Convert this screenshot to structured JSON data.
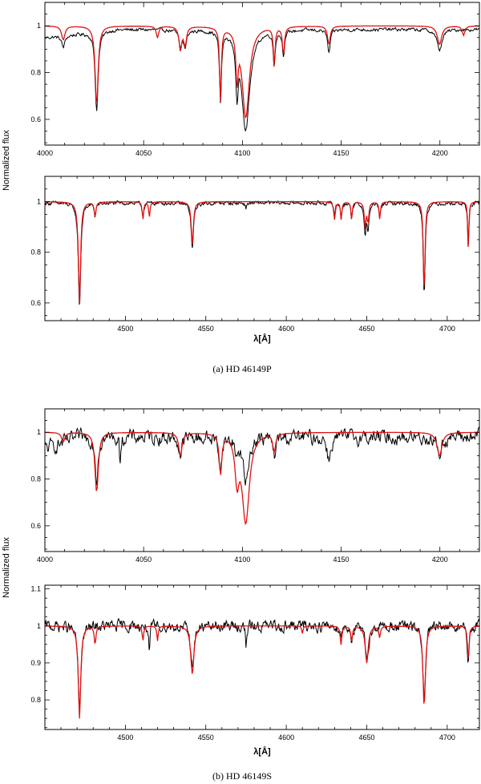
{
  "figure": {
    "ylabel": "Normalized flux",
    "xlabel": "λ[Å]",
    "captions": [
      "(a) HD 46149P",
      "(b) HD 46149S"
    ]
  },
  "colors": {
    "observed": "#000000",
    "model": "#e01010"
  },
  "chart_data": [
    {
      "type": "line",
      "id": "a-top",
      "xlim": [
        4000,
        4220
      ],
      "ylim": [
        0.49,
        1.1
      ],
      "xticks": [
        4000,
        4050,
        4100,
        4150,
        4200
      ],
      "yticks": [
        0.6,
        0.8,
        1
      ],
      "series": [
        {
          "role": "observed",
          "noise": 0.006,
          "cont": 0.985,
          "slope": [
            0.95,
            0.005
          ],
          "lines": [
            [
              4026.2,
              0.34,
              0.9
            ],
            [
              4068.6,
              0.07,
              0.9
            ],
            [
              4071,
              0.07,
              0.9
            ],
            [
              4088.9,
              0.3,
              0.6
            ],
            [
              4097.3,
              0.22,
              0.7
            ],
            [
              4101.7,
              0.42,
              2.5
            ],
            [
              4116.1,
              0.14,
              0.6
            ],
            [
              4120.8,
              0.1,
              0.7
            ],
            [
              4143.8,
              0.1,
              0.8
            ],
            [
              4199.8,
              0.09,
              1.5
            ],
            [
              4009.3,
              0.05,
              1.0
            ]
          ]
        },
        {
          "role": "model",
          "noise": 0,
          "cont": 1.0,
          "lines": [
            [
              4026.2,
              0.34,
              0.9
            ],
            [
              4009.3,
              0.06,
              1.0
            ],
            [
              4057,
              0.05,
              0.7
            ],
            [
              4068.6,
              0.1,
              0.8
            ],
            [
              4071,
              0.08,
              0.8
            ],
            [
              4088.9,
              0.32,
              0.5
            ],
            [
              4097.3,
              0.2,
              0.6
            ],
            [
              4101.7,
              0.39,
              2.2
            ],
            [
              4116.1,
              0.17,
              0.5
            ],
            [
              4120.8,
              0.12,
              0.6
            ],
            [
              4143.8,
              0.08,
              0.8
            ],
            [
              4199.8,
              0.08,
              1.3
            ],
            [
              4212,
              0.04,
              0.8
            ]
          ]
        }
      ]
    },
    {
      "type": "line",
      "id": "a-bottom",
      "xlim": [
        4450,
        4720
      ],
      "ylim": [
        0.53,
        1.1
      ],
      "xticks": [
        4500,
        4550,
        4600,
        4650,
        4700
      ],
      "yticks": [
        0.6,
        0.8,
        1
      ],
      "series": [
        {
          "role": "observed",
          "noise": 0.006,
          "cont": 0.995,
          "lines": [
            [
              4471.5,
              0.41,
              0.9
            ],
            [
              4481.2,
              0.05,
              0.6
            ],
            [
              4510.9,
              0.05,
              0.6
            ],
            [
              4541.6,
              0.18,
              0.9
            ],
            [
              4575,
              0.02,
              0.5
            ],
            [
              4630,
              0.04,
              0.6
            ],
            [
              4634.1,
              0.06,
              0.5
            ],
            [
              4640.6,
              0.06,
              0.5
            ],
            [
              4649,
              0.12,
              0.7
            ],
            [
              4650.8,
              0.1,
              0.7
            ],
            [
              4658.1,
              0.06,
              0.6
            ],
            [
              4685.7,
              0.36,
              0.7
            ],
            [
              4713.1,
              0.17,
              0.5
            ]
          ]
        },
        {
          "role": "model",
          "noise": 0,
          "cont": 1.0,
          "lines": [
            [
              4471.5,
              0.4,
              0.8
            ],
            [
              4481.2,
              0.06,
              0.6
            ],
            [
              4510.9,
              0.07,
              0.5
            ],
            [
              4514.9,
              0.06,
              0.5
            ],
            [
              4541.6,
              0.17,
              0.8
            ],
            [
              4630,
              0.07,
              0.6
            ],
            [
              4634.1,
              0.07,
              0.5
            ],
            [
              4640.6,
              0.07,
              0.5
            ],
            [
              4649,
              0.1,
              0.6
            ],
            [
              4650.8,
              0.08,
              0.6
            ],
            [
              4658.1,
              0.07,
              0.5
            ],
            [
              4685.7,
              0.37,
              0.6
            ],
            [
              4713.1,
              0.19,
              0.4
            ]
          ]
        }
      ]
    },
    {
      "type": "line",
      "id": "b-top",
      "xlim": [
        4000,
        4220
      ],
      "ylim": [
        0.49,
        1.1
      ],
      "xticks": [
        4000,
        4050,
        4100,
        4150,
        4200
      ],
      "yticks": [
        0.6,
        0.8,
        1
      ],
      "series": [
        {
          "role": "observed",
          "noise": 0.025,
          "cont": 0.98,
          "slope": [
            0.93,
            0.06
          ],
          "lines": [
            [
              4026.2,
              0.18,
              0.8
            ],
            [
              4038,
              0.1,
              0.4
            ],
            [
              4068.6,
              0.08,
              0.9
            ],
            [
              4088.9,
              0.14,
              0.8
            ],
            [
              4097.3,
              0.07,
              0.8
            ],
            [
              4101.7,
              0.2,
              1.6
            ],
            [
              4116.1,
              0.08,
              0.8
            ],
            [
              4143.8,
              0.1,
              1.0
            ],
            [
              4199.8,
              0.07,
              1.4
            ]
          ]
        },
        {
          "role": "model",
          "noise": 0,
          "cont": 1.0,
          "lines": [
            [
              4009.3,
              0.04,
              1.0
            ],
            [
              4026.2,
              0.26,
              1.0
            ],
            [
              4068.6,
              0.1,
              1.0
            ],
            [
              4088.9,
              0.17,
              0.8
            ],
            [
              4097.3,
              0.18,
              1.2
            ],
            [
              4101.7,
              0.38,
              2.2
            ],
            [
              4116.1,
              0.08,
              0.8
            ],
            [
              4199.8,
              0.1,
              1.5
            ]
          ]
        }
      ]
    },
    {
      "type": "line",
      "id": "b-bottom",
      "xlim": [
        4450,
        4720
      ],
      "ylim": [
        0.72,
        1.11
      ],
      "xticks": [
        4500,
        4550,
        4600,
        4650,
        4700
      ],
      "yticks": [
        0.8,
        0.9,
        1,
        1.1
      ],
      "series": [
        {
          "role": "observed",
          "noise": 0.012,
          "cont": 1.0,
          "lines": [
            [
              4471.5,
              0.23,
              1.0
            ],
            [
              4514.9,
              0.09,
              0.4
            ],
            [
              4541.6,
              0.11,
              1.2
            ],
            [
              4575,
              0.07,
              0.4
            ],
            [
              4634,
              0.03,
              0.6
            ],
            [
              4640.6,
              0.04,
              0.6
            ],
            [
              4650,
              0.09,
              1.3
            ],
            [
              4685.7,
              0.2,
              1.0
            ],
            [
              4713.1,
              0.1,
              0.7
            ]
          ]
        },
        {
          "role": "model",
          "noise": 0,
          "cont": 1.0,
          "lines": [
            [
              4471.5,
              0.25,
              0.9
            ],
            [
              4481.2,
              0.05,
              0.6
            ],
            [
              4510.9,
              0.04,
              0.5
            ],
            [
              4520,
              0.04,
              0.5
            ],
            [
              4541.6,
              0.13,
              1.2
            ],
            [
              4610,
              0.02,
              0.5
            ],
            [
              4634,
              0.05,
              0.6
            ],
            [
              4640.6,
              0.04,
              0.6
            ],
            [
              4650,
              0.1,
              1.1
            ],
            [
              4658,
              0.03,
              0.6
            ],
            [
              4685.7,
              0.22,
              0.9
            ],
            [
              4713.1,
              0.09,
              0.6
            ]
          ]
        }
      ]
    }
  ]
}
